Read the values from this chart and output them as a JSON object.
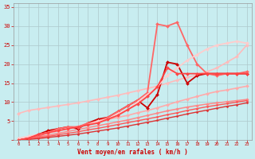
{
  "xlabel": "Vent moyen/en rafales ( km/h )",
  "xlim": [
    -0.5,
    23.5
  ],
  "ylim": [
    0,
    36
  ],
  "xticks": [
    0,
    1,
    2,
    3,
    4,
    5,
    6,
    7,
    8,
    9,
    10,
    11,
    12,
    13,
    14,
    15,
    16,
    17,
    18,
    19,
    20,
    21,
    22,
    23
  ],
  "yticks": [
    0,
    5,
    10,
    15,
    20,
    25,
    30,
    35
  ],
  "bg_color": "#c8edf0",
  "grid_color": "#adc8cc",
  "lines": [
    {
      "x": [
        0,
        1,
        2,
        3,
        4,
        5,
        6,
        7,
        8,
        9,
        10,
        11,
        12,
        13,
        14,
        15,
        16,
        17,
        18,
        19,
        20,
        21,
        22,
        23
      ],
      "y": [
        7.0,
        7.8,
        8.2,
        8.6,
        9.0,
        9.4,
        9.8,
        10.3,
        10.8,
        11.3,
        11.8,
        12.4,
        13.0,
        13.6,
        14.2,
        15.0,
        15.8,
        16.5,
        17.2,
        18.0,
        19.0,
        20.5,
        22.0,
        25.0
      ],
      "color": "#ffbbbb",
      "lw": 1.2,
      "marker": "D",
      "ms": 2.0
    },
    {
      "x": [
        0,
        1,
        2,
        3,
        4,
        5,
        6,
        7,
        8,
        9,
        10,
        11,
        12,
        13,
        14,
        15,
        16,
        17,
        18,
        19,
        20,
        21,
        22,
        23
      ],
      "y": [
        0,
        0.6,
        1.2,
        1.8,
        2.4,
        3.0,
        3.6,
        4.2,
        4.8,
        5.4,
        6.0,
        6.5,
        7.2,
        7.8,
        8.5,
        9.3,
        10.1,
        10.8,
        11.5,
        12.2,
        12.8,
        13.2,
        13.7,
        14.2
      ],
      "color": "#ffaaaa",
      "lw": 1.2,
      "marker": "D",
      "ms": 2.0
    },
    {
      "x": [
        0,
        1,
        2,
        3,
        4,
        5,
        6,
        7,
        8,
        9,
        10,
        11,
        12,
        13,
        14,
        15,
        16,
        17,
        18,
        19,
        20,
        21,
        22,
        23
      ],
      "y": [
        0,
        0.4,
        0.9,
        1.3,
        1.8,
        2.3,
        2.8,
        3.3,
        3.8,
        4.3,
        4.8,
        5.3,
        5.9,
        6.5,
        7.1,
        7.7,
        8.2,
        8.7,
        9.1,
        9.5,
        9.8,
        10.1,
        10.4,
        10.7
      ],
      "color": "#ff8888",
      "lw": 1.1,
      "marker": "D",
      "ms": 1.8
    },
    {
      "x": [
        0,
        1,
        2,
        3,
        4,
        5,
        6,
        7,
        8,
        9,
        10,
        11,
        12,
        13,
        14,
        15,
        16,
        17,
        18,
        19,
        20,
        21,
        22,
        23
      ],
      "y": [
        0,
        0.3,
        0.7,
        1.0,
        1.4,
        1.8,
        2.2,
        2.7,
        3.1,
        3.6,
        4.1,
        4.6,
        5.1,
        5.6,
        6.1,
        6.7,
        7.2,
        7.8,
        8.3,
        8.8,
        9.2,
        9.6,
        10.0,
        10.4
      ],
      "color": "#ff5555",
      "lw": 1.0,
      "marker": "D",
      "ms": 1.5
    },
    {
      "x": [
        0,
        1,
        2,
        3,
        4,
        5,
        6,
        7,
        8,
        9,
        10,
        11,
        12,
        13,
        14,
        15,
        16,
        17,
        18,
        19,
        20,
        21,
        22,
        23
      ],
      "y": [
        0,
        0.2,
        0.4,
        0.7,
        1.0,
        1.3,
        1.6,
        2.0,
        2.4,
        2.8,
        3.2,
        3.7,
        4.2,
        4.7,
        5.2,
        5.8,
        6.3,
        6.9,
        7.4,
        7.9,
        8.4,
        8.9,
        9.3,
        9.8
      ],
      "color": "#dd3333",
      "lw": 1.0,
      "marker": "D",
      "ms": 1.5
    },
    {
      "x": [
        0,
        1,
        2,
        3,
        4,
        5,
        6,
        7,
        8,
        9,
        10,
        11,
        12,
        13,
        14,
        15,
        16,
        17,
        18,
        19,
        20,
        21,
        22,
        23
      ],
      "y": [
        0,
        0.5,
        1.5,
        2.5,
        3.0,
        3.5,
        3.0,
        4.5,
        5.5,
        6.0,
        7.5,
        9.0,
        10.5,
        8.5,
        12.0,
        20.5,
        20.0,
        15.0,
        17.0,
        17.5,
        17.5,
        17.5,
        17.5,
        17.5
      ],
      "color": "#cc0000",
      "lw": 1.3,
      "marker": "D",
      "ms": 2.0
    },
    {
      "x": [
        0,
        1,
        2,
        3,
        4,
        5,
        6,
        7,
        8,
        9,
        10,
        11,
        12,
        13,
        14,
        15,
        16,
        17,
        18,
        19,
        20,
        21,
        22,
        23
      ],
      "y": [
        0,
        0.5,
        1.0,
        2.0,
        3.0,
        3.5,
        3.5,
        4.5,
        5.0,
        6.0,
        7.5,
        9.0,
        10.5,
        12.5,
        30.5,
        30.0,
        31.0,
        25.0,
        20.0,
        17.5,
        17.0,
        17.5,
        17.5,
        18.0
      ],
      "color": "#ff6666",
      "lw": 1.3,
      "marker": "D",
      "ms": 2.0
    },
    {
      "x": [
        0,
        1,
        2,
        3,
        4,
        5,
        6,
        7,
        8,
        9,
        10,
        11,
        12,
        13,
        14,
        15,
        16,
        17,
        18,
        19,
        20,
        21,
        22,
        23
      ],
      "y": [
        0.5,
        1.0,
        1.5,
        2.0,
        2.5,
        3.0,
        3.5,
        4.0,
        5.0,
        5.5,
        7.0,
        8.0,
        10.0,
        12.0,
        14.0,
        17.0,
        19.0,
        21.0,
        22.5,
        24.0,
        25.0,
        25.5,
        26.0,
        25.5
      ],
      "color": "#ffcccc",
      "lw": 1.3,
      "marker": "D",
      "ms": 2.0
    },
    {
      "x": [
        0,
        1,
        2,
        3,
        4,
        5,
        6,
        7,
        8,
        9,
        10,
        11,
        12,
        13,
        14,
        15,
        16,
        17,
        18,
        19,
        20,
        21,
        22,
        23
      ],
      "y": [
        0,
        0.5,
        1.5,
        2.0,
        2.5,
        3.0,
        3.5,
        4.0,
        4.5,
        5.5,
        6.5,
        8.0,
        9.5,
        11.5,
        14.0,
        19.0,
        17.5,
        17.5,
        17.5,
        17.5,
        17.5,
        17.5,
        17.5,
        17.5
      ],
      "color": "#ff4444",
      "lw": 1.3,
      "marker": "D",
      "ms": 2.0
    }
  ]
}
